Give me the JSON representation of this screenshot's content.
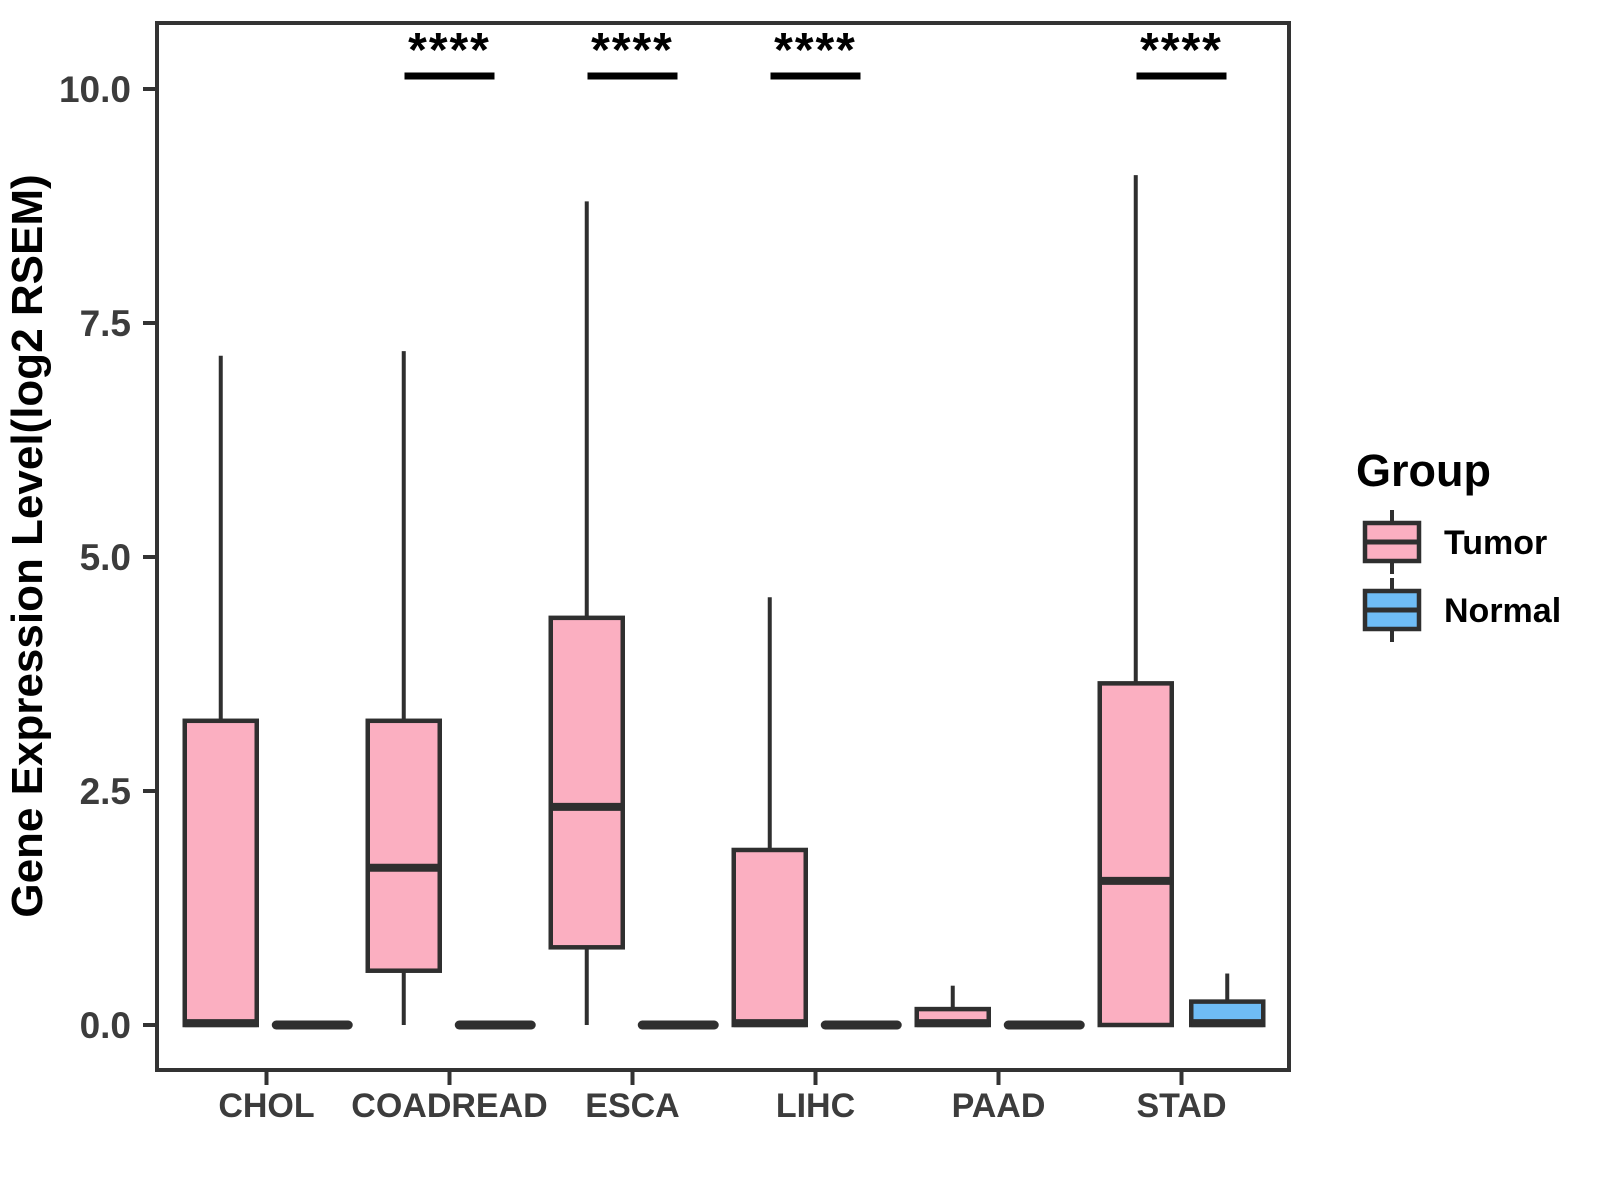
{
  "chart_data": {
    "type": "boxplot",
    "title": "",
    "xlabel": "",
    "ylabel": "Gene Expression Level(log2 RSEM)",
    "legend_title": "Group",
    "legend_position": "right",
    "grid": false,
    "y_ticks": [
      "0.0",
      "2.5",
      "5.0",
      "7.5",
      "10.0"
    ],
    "y_tick_values": [
      0,
      2.5,
      5,
      7.5,
      10
    ],
    "ylim": [
      -0.48,
      10.7
    ],
    "categories": [
      "CHOL",
      "COADREAD",
      "ESCA",
      "LIHC",
      "PAAD",
      "STAD"
    ],
    "series": [
      {
        "name": "Tumor",
        "color": "#FBAFC1",
        "boxes_min_q1_med_q3_max": [
          [
            0,
            0,
            0.02,
            3.25,
            7.15
          ],
          [
            0,
            0.58,
            1.68,
            3.25,
            7.2
          ],
          [
            0,
            0.83,
            2.33,
            4.35,
            8.8
          ],
          [
            0,
            0,
            0.02,
            1.87,
            4.57
          ],
          [
            0,
            0,
            0.02,
            0.17,
            0.42
          ],
          [
            0,
            0,
            1.54,
            3.65,
            9.08
          ]
        ]
      },
      {
        "name": "Normal",
        "color": "#6FBCF5",
        "boxes_min_q1_med_q3_max": [
          [
            0,
            0,
            0,
            0,
            0
          ],
          [
            0,
            0,
            0,
            0,
            0
          ],
          [
            0,
            0,
            0,
            0,
            0
          ],
          [
            0,
            0,
            0,
            0,
            0
          ],
          [
            0,
            0,
            0,
            0,
            0
          ],
          [
            0,
            0,
            0.02,
            0.25,
            0.55
          ]
        ]
      }
    ],
    "significance": [
      {
        "category": "COADREAD",
        "label": "****"
      },
      {
        "category": "ESCA",
        "label": "****"
      },
      {
        "category": "LIHC",
        "label": "****"
      },
      {
        "category": "STAD",
        "label": "****"
      }
    ],
    "colors": {
      "tumor": "#FBAFC1",
      "normal": "#6FBCF5",
      "stroke": "#2f2f2f",
      "panel_border": "#333333"
    }
  }
}
